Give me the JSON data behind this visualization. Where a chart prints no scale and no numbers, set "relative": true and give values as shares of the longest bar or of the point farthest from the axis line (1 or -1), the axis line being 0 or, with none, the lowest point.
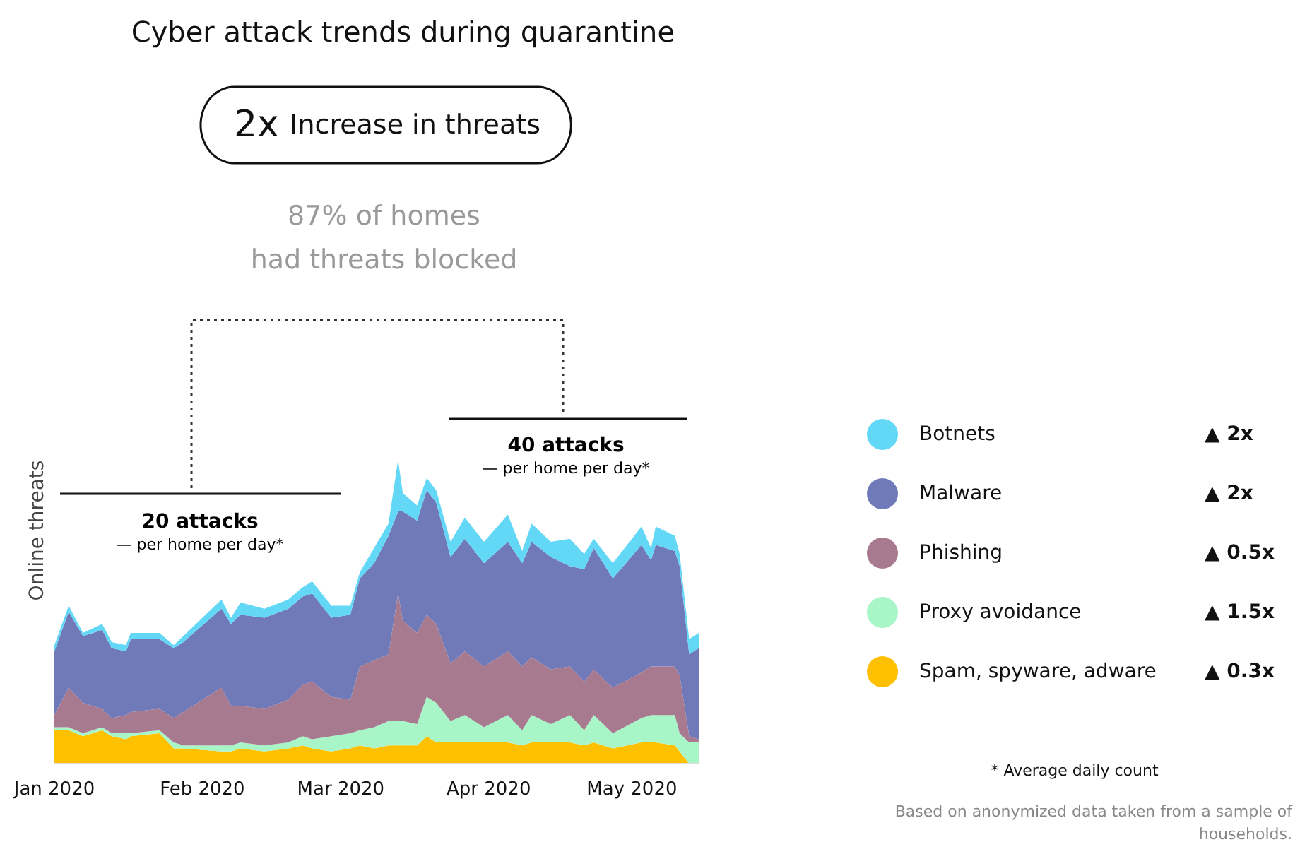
{
  "chart_data": {
    "type": "area",
    "stacked": true,
    "relative": true,
    "title": "Cyber attack trends during quarantine",
    "ylabel": "Online threats",
    "x": [
      "2020-01-01",
      "2020-01-04",
      "2020-01-07",
      "2020-01-11",
      "2020-01-13",
      "2020-01-16",
      "2020-01-17",
      "2020-01-23",
      "2020-01-26",
      "2020-01-28",
      "2020-02-05",
      "2020-02-07",
      "2020-02-09",
      "2020-02-14",
      "2020-02-19",
      "2020-02-22",
      "2020-02-24",
      "2020-02-28",
      "2020-03-03",
      "2020-03-05",
      "2020-03-08",
      "2020-03-11",
      "2020-03-13",
      "2020-03-14",
      "2020-03-17",
      "2020-03-19",
      "2020-03-21",
      "2020-03-24",
      "2020-03-27",
      "2020-03-31",
      "2020-04-05",
      "2020-04-08",
      "2020-04-10",
      "2020-04-14",
      "2020-04-18",
      "2020-04-21",
      "2020-04-23",
      "2020-04-27",
      "2020-05-03",
      "2020-05-05",
      "2020-05-06",
      "2020-05-10",
      "2020-05-11",
      "2020-05-13",
      "2020-05-15"
    ],
    "xlim": [
      "2020-01-01",
      "2020-05-15"
    ],
    "xticks": [
      {
        "value": "2020-01-01",
        "label": "Jan 2020"
      },
      {
        "value": "2020-02-01",
        "label": "Feb 2020"
      },
      {
        "value": "2020-03-01",
        "label": "Mar 2020"
      },
      {
        "value": "2020-04-01",
        "label": "Apr 2020"
      },
      {
        "value": "2020-05-01",
        "label": "May 2020"
      }
    ],
    "series": [
      {
        "name": "Spam, spyware, adware",
        "color": "#ffc000",
        "values": [
          0.11,
          0.11,
          0.09,
          0.11,
          0.09,
          0.08,
          0.09,
          0.1,
          0.05,
          0.05,
          0.04,
          0.04,
          0.05,
          0.04,
          0.05,
          0.06,
          0.05,
          0.04,
          0.05,
          0.06,
          0.05,
          0.06,
          0.06,
          0.06,
          0.06,
          0.09,
          0.07,
          0.07,
          0.07,
          0.07,
          0.07,
          0.06,
          0.07,
          0.07,
          0.07,
          0.06,
          0.07,
          0.05,
          0.07,
          0.07,
          0.07,
          0.06,
          0.04,
          0,
          0
        ]
      },
      {
        "name": "Proxy avoidance",
        "color": "#a8f5c8",
        "values": [
          0.01,
          0.01,
          0.01,
          0.01,
          0.01,
          0.02,
          0.01,
          0.01,
          0.02,
          0.01,
          0.02,
          0.02,
          0.02,
          0.02,
          0.02,
          0.03,
          0.03,
          0.05,
          0.05,
          0.05,
          0.07,
          0.08,
          0.08,
          0.08,
          0.07,
          0.13,
          0.13,
          0.07,
          0.09,
          0.05,
          0.09,
          0.05,
          0.09,
          0.06,
          0.09,
          0.05,
          0.09,
          0.05,
          0.08,
          0.09,
          0.09,
          0.1,
          0.06,
          0.07,
          0.07
        ]
      },
      {
        "name": "Phishing",
        "color": "#a87a90",
        "values": [
          0.04,
          0.13,
          0.1,
          0.06,
          0.05,
          0.06,
          0.07,
          0.07,
          0.08,
          0.11,
          0.19,
          0.13,
          0.12,
          0.12,
          0.14,
          0.17,
          0.19,
          0.13,
          0.11,
          0.21,
          0.22,
          0.22,
          0.42,
          0.33,
          0.3,
          0.27,
          0.26,
          0.19,
          0.21,
          0.2,
          0.21,
          0.21,
          0.19,
          0.18,
          0.16,
          0.16,
          0.15,
          0.15,
          0.15,
          0.16,
          0.16,
          0.16,
          0.19,
          0.02,
          0.01
        ]
      },
      {
        "name": "Malware",
        "color": "#707ab8",
        "values": [
          0.21,
          0.25,
          0.22,
          0.26,
          0.23,
          0.21,
          0.24,
          0.23,
          0.23,
          0.23,
          0.26,
          0.27,
          0.3,
          0.3,
          0.3,
          0.29,
          0.29,
          0.26,
          0.28,
          0.29,
          0.32,
          0.39,
          0.27,
          0.36,
          0.37,
          0.41,
          0.4,
          0.35,
          0.37,
          0.34,
          0.36,
          0.34,
          0.38,
          0.37,
          0.33,
          0.37,
          0.4,
          0.36,
          0.42,
          0.35,
          0.4,
          0.38,
          0.36,
          0.27,
          0.3
        ]
      },
      {
        "name": "Botnets",
        "color": "#62d7f6",
        "values": [
          0.02,
          0.02,
          0.01,
          0.02,
          0.02,
          0.02,
          0.02,
          0.02,
          0.01,
          0.02,
          0.03,
          0.02,
          0.04,
          0.03,
          0.03,
          0.03,
          0.04,
          0.04,
          0.03,
          0.02,
          0.05,
          0.04,
          0.17,
          0.06,
          0.05,
          0.04,
          0.04,
          0.05,
          0.07,
          0.07,
          0.09,
          0.04,
          0.06,
          0.05,
          0.09,
          0.05,
          0.03,
          0.05,
          0.06,
          0.04,
          0.06,
          0.05,
          0.04,
          0.05,
          0.05
        ]
      }
    ],
    "legend": "right",
    "grid": false,
    "annotations": [
      "2x",
      "Increase in threats",
      "87% of homes\nhad threats blocked",
      "20 attacks",
      "— per home per day*",
      "40 attacks",
      "— per home per day*",
      "▲ 2x",
      "▲ 2x",
      "▲ 0.5x",
      "▲ 1.5x",
      "▲ 0.3x",
      "* Average daily count",
      "Based on anonymized data taken from a sample of\nhouseholds."
    ]
  }
}
